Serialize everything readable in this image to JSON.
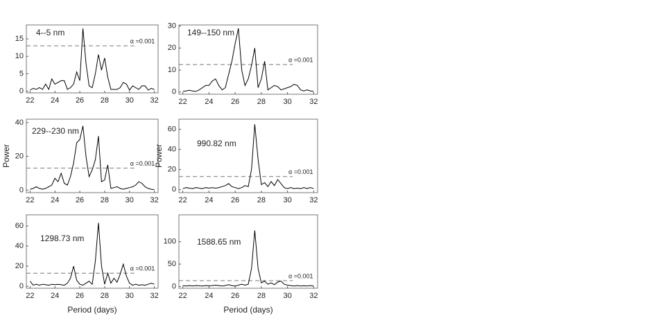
{
  "chart_data": [
    {
      "type": "line",
      "label": "4--5 nm",
      "x": [
        22,
        22.25,
        22.5,
        22.75,
        23,
        23.25,
        23.5,
        23.75,
        24,
        24.25,
        24.5,
        24.75,
        25,
        25.25,
        25.5,
        25.75,
        26,
        26.25,
        26.5,
        26.75,
        27,
        27.25,
        27.5,
        27.75,
        28,
        28.25,
        28.5,
        28.75,
        29,
        29.25,
        29.5,
        29.75,
        30,
        30.25,
        30.5,
        30.75,
        31,
        31.25,
        31.5,
        31.75,
        32
      ],
      "values": [
        0.3,
        0.8,
        0.5,
        1,
        0.5,
        2,
        0.5,
        3.5,
        2,
        2.5,
        3,
        3,
        0.5,
        1,
        2,
        5.5,
        3,
        18,
        8,
        1.5,
        1,
        5,
        10.5,
        6,
        9.5,
        4,
        0.5,
        0.5,
        0.5,
        1,
        2.5,
        2,
        0.3,
        1.5,
        1,
        0.5,
        1.5,
        1.5,
        0.3,
        0.8,
        0.5
      ],
      "color": "#000000",
      "threshold": 13,
      "threshold_label": "α =0.001",
      "xlim": [
        21.7,
        32.3
      ],
      "xticks": [
        22,
        24,
        26,
        28,
        30,
        32
      ],
      "ylim": [
        -0.5,
        19
      ],
      "yticks": [
        0,
        5,
        10,
        15
      ]
    },
    {
      "type": "line",
      "label": "149--150 nm",
      "x": [
        22,
        22.25,
        22.5,
        22.75,
        23,
        23.25,
        23.5,
        23.75,
        24,
        24.25,
        24.5,
        24.75,
        25,
        25.25,
        25.5,
        25.75,
        26,
        26.25,
        26.5,
        26.75,
        27,
        27.25,
        27.5,
        27.75,
        28,
        28.25,
        28.5,
        28.75,
        29,
        29.25,
        29.5,
        29.75,
        30,
        30.25,
        30.5,
        30.75,
        31,
        31.25,
        31.5,
        31.75,
        32
      ],
      "values": [
        0.3,
        0.5,
        0.8,
        0.5,
        0.3,
        1,
        2,
        3,
        3,
        5,
        6,
        3,
        1,
        2,
        8,
        14,
        22,
        29,
        10,
        3,
        6,
        12,
        20,
        2,
        6,
        14,
        1,
        2,
        3,
        2.5,
        1,
        1.5,
        2,
        2.5,
        3.5,
        3,
        1,
        0.5,
        1,
        0.5,
        0.3
      ],
      "color": "#000000",
      "threshold": 12.5,
      "threshold_label": "α =0.001",
      "xlim": [
        21.7,
        32.3
      ],
      "xticks": [
        22,
        24,
        26,
        28,
        30,
        32
      ],
      "ylim": [
        -1,
        30.5
      ],
      "yticks": [
        0,
        10,
        20,
        30
      ]
    },
    {
      "type": "line",
      "label": "229--230 nm",
      "ylabel": "Power",
      "x": [
        22,
        22.25,
        22.5,
        22.75,
        23,
        23.25,
        23.5,
        23.75,
        24,
        24.25,
        24.5,
        24.75,
        25,
        25.25,
        25.5,
        25.75,
        26,
        26.25,
        26.5,
        26.75,
        27,
        27.25,
        27.5,
        27.75,
        28,
        28.25,
        28.5,
        28.75,
        29,
        29.25,
        29.5,
        29.75,
        30,
        30.25,
        30.5,
        30.75,
        31,
        31.25,
        31.5,
        31.75,
        32
      ],
      "values": [
        0.5,
        1,
        2,
        1,
        0.5,
        1,
        2,
        3,
        7,
        5,
        10,
        4,
        3,
        8,
        16,
        28,
        30,
        38,
        20,
        8,
        12,
        18,
        32,
        5,
        6,
        15,
        1,
        1.5,
        2,
        1,
        0.5,
        1,
        1.5,
        2,
        3,
        5,
        4,
        2,
        1,
        0.5,
        0.3
      ],
      "color": "#000000",
      "threshold": 13,
      "threshold_label": "α =0.001",
      "xlim": [
        21.7,
        32.3
      ],
      "xticks": [
        22,
        24,
        26,
        28,
        30,
        32
      ],
      "ylim": [
        -1.5,
        42
      ],
      "yticks": [
        0,
        20,
        40
      ]
    },
    {
      "type": "line",
      "label": "990.82 nm",
      "ylabel": "Power",
      "x": [
        22,
        22.25,
        22.5,
        22.75,
        23,
        23.25,
        23.5,
        23.75,
        24,
        24.25,
        24.5,
        24.75,
        25,
        25.25,
        25.5,
        25.75,
        26,
        26.25,
        26.5,
        26.75,
        27,
        27.25,
        27.5,
        27.75,
        28,
        28.25,
        28.5,
        28.75,
        29,
        29.25,
        29.5,
        29.75,
        30,
        30.25,
        30.5,
        30.75,
        31,
        31.25,
        31.5,
        31.75,
        32
      ],
      "values": [
        1,
        2,
        1.5,
        1,
        2,
        1.5,
        1,
        2,
        1.5,
        2,
        1.5,
        2,
        3,
        4,
        6,
        3,
        2,
        1,
        2,
        4,
        3,
        20,
        65,
        30,
        5,
        7,
        3,
        8,
        4,
        10,
        6,
        2,
        1,
        2,
        1,
        1.5,
        1,
        2,
        1,
        2,
        1
      ],
      "color": "#000000",
      "threshold": 13,
      "threshold_label": "α =0.001",
      "xlim": [
        21.7,
        32.3
      ],
      "xticks": [
        22,
        24,
        26,
        28,
        30,
        32
      ],
      "ylim": [
        -3,
        70
      ],
      "yticks": [
        0,
        20,
        40,
        60
      ]
    },
    {
      "type": "line",
      "label": "1298.73 nm",
      "xlabel": "Period (days)",
      "x": [
        22,
        22.25,
        22.5,
        22.75,
        23,
        23.25,
        23.5,
        23.75,
        24,
        24.25,
        24.5,
        24.75,
        25,
        25.25,
        25.5,
        25.75,
        26,
        26.25,
        26.5,
        26.75,
        27,
        27.25,
        27.5,
        27.75,
        28,
        28.25,
        28.5,
        28.75,
        29,
        29.25,
        29.5,
        29.75,
        30,
        30.25,
        30.5,
        30.75,
        31,
        31.25,
        31.5,
        31.75,
        32
      ],
      "values": [
        5,
        1,
        2,
        1,
        2,
        1.5,
        1,
        2,
        1.5,
        2,
        1.5,
        1,
        3,
        8,
        20,
        6,
        2,
        1,
        3,
        5,
        2,
        25,
        63,
        20,
        2,
        13,
        3,
        8,
        4,
        12,
        22,
        10,
        3,
        1,
        2,
        1,
        1.5,
        1,
        2,
        3,
        2
      ],
      "color": "#000000",
      "threshold": 13,
      "threshold_label": "α =0.001",
      "xlim": [
        21.7,
        32.3
      ],
      "xticks": [
        22,
        24,
        26,
        28,
        30,
        32
      ],
      "ylim": [
        -2,
        71
      ],
      "yticks": [
        0,
        20,
        40,
        60
      ]
    },
    {
      "type": "line",
      "label": "1588.65 nm",
      "xlabel": "Period (days)",
      "x": [
        22,
        22.25,
        22.5,
        22.75,
        23,
        23.25,
        23.5,
        23.75,
        24,
        24.25,
        24.5,
        24.75,
        25,
        25.25,
        25.5,
        25.75,
        26,
        26.25,
        26.5,
        26.75,
        27,
        27.25,
        27.5,
        27.75,
        28,
        28.25,
        28.5,
        28.75,
        29,
        29.25,
        29.5,
        29.75,
        30,
        30.25,
        30.5,
        30.75,
        31,
        31.25,
        31.5,
        31.75,
        32
      ],
      "values": [
        2,
        1,
        2,
        1,
        2,
        1.5,
        1,
        2,
        1.5,
        2,
        3,
        2,
        1,
        2,
        4,
        2,
        1,
        3,
        5,
        3,
        5,
        40,
        125,
        40,
        8,
        12,
        5,
        8,
        4,
        10,
        12,
        5,
        3,
        2,
        1,
        2,
        1,
        1.5,
        1,
        2,
        1
      ],
      "color": "#000000",
      "threshold": 13,
      "threshold_label": "α =0.001",
      "xlim": [
        21.7,
        32.3
      ],
      "xticks": [
        22,
        24,
        26,
        28,
        30,
        32
      ],
      "ylim": [
        -4,
        160
      ],
      "yticks": [
        0,
        50,
        100
      ]
    }
  ]
}
